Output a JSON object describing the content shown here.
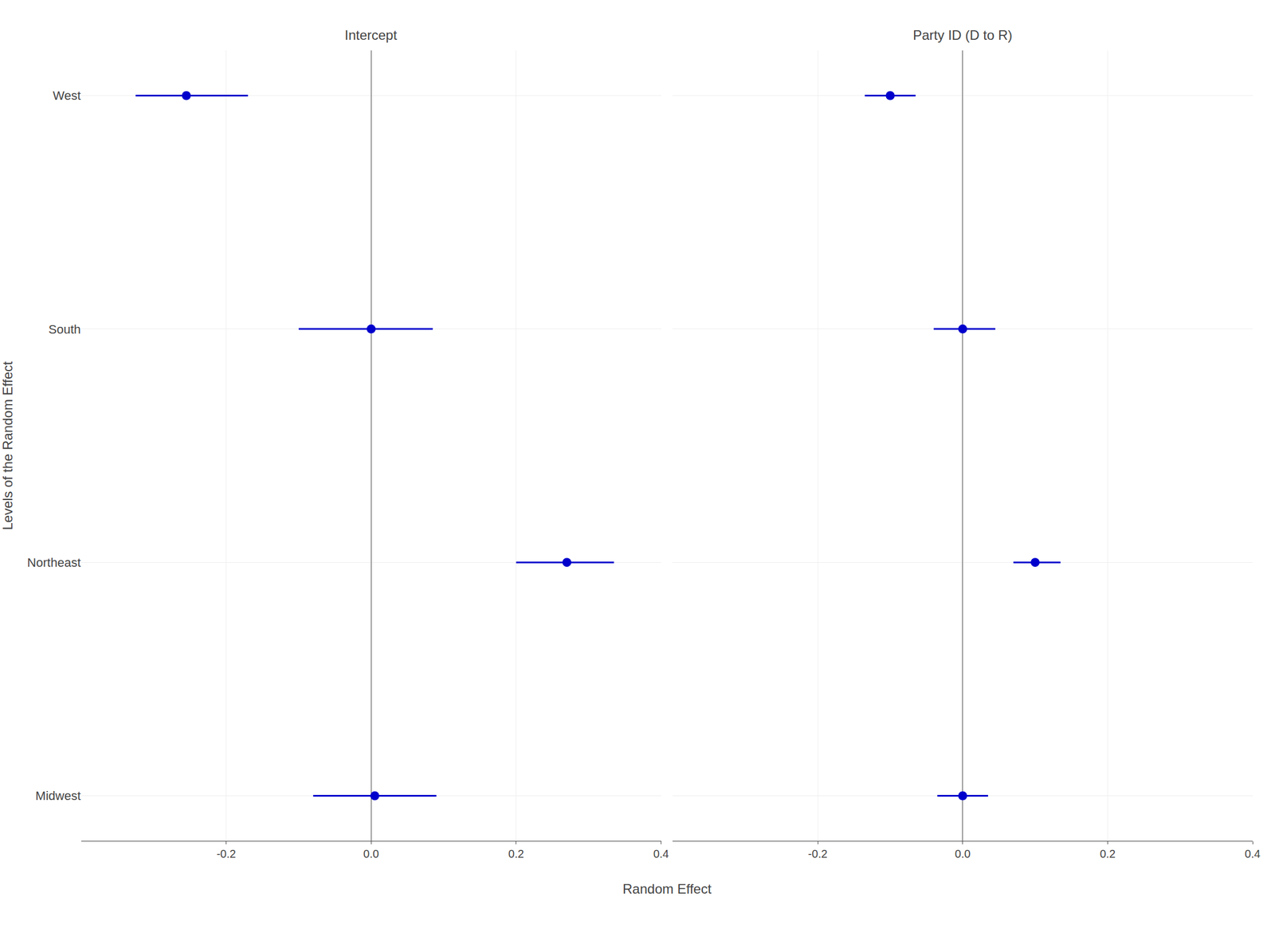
{
  "chart_data": {
    "type": "scatter",
    "orientation": "horizontal",
    "xlabel": "Random Effect",
    "ylabel": "Levels of the Random Effect",
    "categories": [
      "West",
      "South",
      "Northeast",
      "Midwest"
    ],
    "series": [
      {
        "name": "Intercept",
        "values": [
          -0.255,
          0.0,
          0.27,
          0.005
        ],
        "ci_lower": [
          -0.325,
          -0.1,
          0.2,
          -0.08
        ],
        "ci_upper": [
          -0.17,
          0.085,
          0.335,
          0.09
        ]
      },
      {
        "name": "Party ID (D to R)",
        "values": [
          -0.1,
          0.0,
          0.1,
          0.0
        ],
        "ci_lower": [
          -0.135,
          -0.04,
          0.07,
          -0.035
        ],
        "ci_upper": [
          -0.065,
          0.045,
          0.135,
          0.035
        ]
      }
    ],
    "color": "#0000CC",
    "xlim": [
      -0.4,
      0.4
    ],
    "xticks": [
      -0.2,
      {
        "value": 0,
        "label": "0.0"
      },
      0.2,
      0.4
    ],
    "grid": true
  }
}
